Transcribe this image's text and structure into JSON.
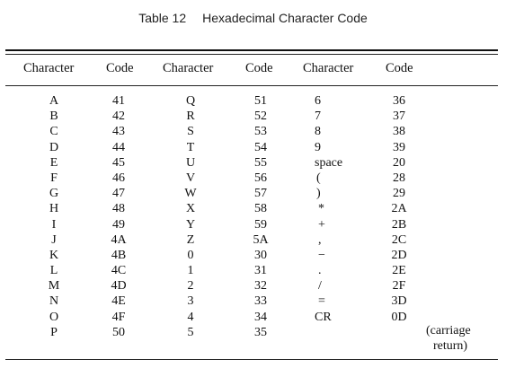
{
  "caption": {
    "number": "Table 12",
    "title": "Hexadecimal Character Code"
  },
  "headers": [
    "Character",
    "Code",
    "Character",
    "Code",
    "Character",
    "Code"
  ],
  "groups": [
    {
      "characters": [
        "A",
        "B",
        "C",
        "D",
        "E",
        "F",
        "G",
        "H",
        "I",
        "J",
        "K",
        "L",
        "M",
        "N",
        "O",
        "P"
      ],
      "codes": [
        "41",
        "42",
        "43",
        "44",
        "45",
        "46",
        "47",
        "48",
        "49",
        "4A",
        "4B",
        "4C",
        "4D",
        "4E",
        "4F",
        "50"
      ]
    },
    {
      "characters": [
        "Q",
        "R",
        "S",
        "T",
        "U",
        "V",
        "W",
        "X",
        "Y",
        "Z",
        "0",
        "1",
        "2",
        "3",
        "4",
        "5"
      ],
      "codes": [
        "51",
        "52",
        "53",
        "54",
        "55",
        "56",
        "57",
        "58",
        "59",
        "5A",
        "30",
        "31",
        "32",
        "33",
        "34",
        "35"
      ]
    },
    {
      "characters": [
        "6",
        "7",
        "8",
        "9",
        "space",
        "(",
        ")",
        "*",
        "+",
        ",",
        "−",
        ".",
        "/",
        "=",
        "CR",
        ""
      ],
      "codes": [
        "36",
        "37",
        "38",
        "39",
        "20",
        "28",
        "29",
        "2A",
        "2B",
        "2C",
        "2D",
        "2E",
        "2F",
        "3D",
        "0D",
        ""
      ]
    }
  ],
  "note": {
    "line1": "(carriage",
    "line2": "return)"
  }
}
